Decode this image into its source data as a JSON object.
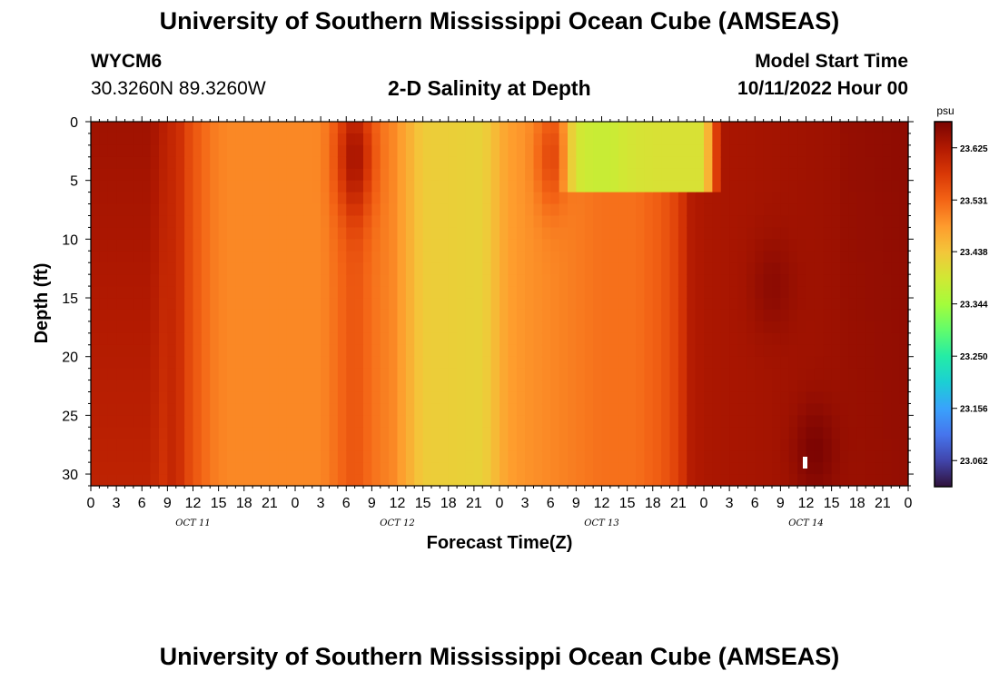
{
  "title": "University of Southern Mississippi Ocean Cube (AMSEAS)",
  "title_repeat": "University of Southern Mississippi Ocean Cube (AMSEAS)",
  "station": {
    "id": "WYCM6",
    "coords": "30.3260N  89.3260W"
  },
  "model_start": {
    "label": "Model Start Time",
    "value": "10/11/2022 Hour 00"
  },
  "chart_data": {
    "type": "heatmap",
    "title": "2-D Salinity at Depth",
    "xlabel": "Forecast Time(Z)",
    "ylabel": "Depth (ft)",
    "x_range_hours": [
      0,
      96
    ],
    "y_range_ft": [
      0,
      31
    ],
    "y_inverted": true,
    "x_tick_labels": [
      "0",
      "3",
      "6",
      "9",
      "12",
      "15",
      "18",
      "21",
      "0",
      "3",
      "6",
      "9",
      "12",
      "15",
      "18",
      "21",
      "0",
      "3",
      "6",
      "9",
      "12",
      "15",
      "18",
      "21",
      "0",
      "3",
      "6",
      "9",
      "12",
      "15",
      "18",
      "21",
      "0"
    ],
    "y_ticks": [
      0,
      5,
      10,
      15,
      20,
      25,
      30
    ],
    "day_labels": [
      {
        "label": "OCT 11",
        "hour": 12
      },
      {
        "label": "OCT 12",
        "hour": 36
      },
      {
        "label": "OCT 13",
        "hour": 60
      },
      {
        "label": "OCT 14",
        "hour": 84
      }
    ],
    "colorbar": {
      "unit": "psu",
      "min": 23.015,
      "max": 23.672,
      "tick_values": [
        23.625,
        23.531,
        23.438,
        23.344,
        23.25,
        23.156,
        23.062
      ],
      "tick_labels": [
        "23.625",
        "23.531",
        "23.438",
        "23.344",
        "23.250",
        "23.156",
        "23.062"
      ]
    },
    "colormap": [
      "#30123b",
      "#4145ab",
      "#4675ed",
      "#39a2fc",
      "#1bcfd4",
      "#24eca6",
      "#61fc6c",
      "#a4fc3b",
      "#d1e834",
      "#f3c63a",
      "#fe9b2d",
      "#f36315",
      "#d93806",
      "#b11901",
      "#7a0402"
    ],
    "description_profiles": "salinity field estimated per forecast hour"
  }
}
